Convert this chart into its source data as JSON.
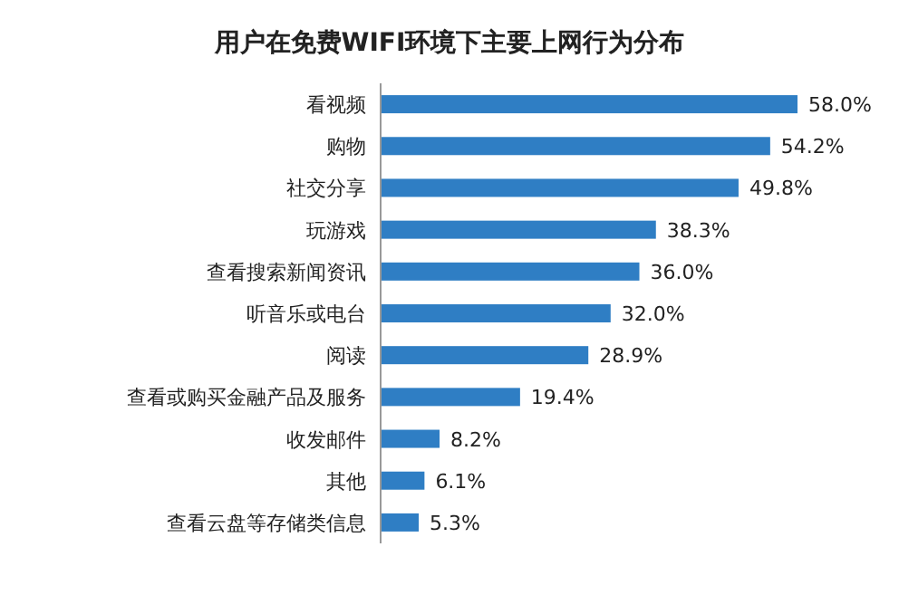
{
  "chart_data": {
    "type": "bar",
    "orientation": "horizontal",
    "title": "用户在免费WIFI环境下主要上网行为分布",
    "categories": [
      "看视频",
      "购物",
      "社交分享",
      "玩游戏",
      "查看搜索新闻资讯",
      "听音乐或电台",
      "阅读",
      "查看或购买金融产品及服务",
      "收发邮件",
      "其他",
      "查看云盘等存储类信息"
    ],
    "values": [
      58.0,
      54.2,
      49.8,
      38.3,
      36.0,
      32.0,
      28.9,
      19.4,
      8.2,
      6.1,
      5.3
    ],
    "value_labels": [
      "58.0%",
      "54.2%",
      "49.8%",
      "38.3%",
      "36.0%",
      "32.0%",
      "28.9%",
      "19.4%",
      "8.2%",
      "6.1%",
      "5.3%"
    ],
    "color": "#2f7ec4"
  }
}
